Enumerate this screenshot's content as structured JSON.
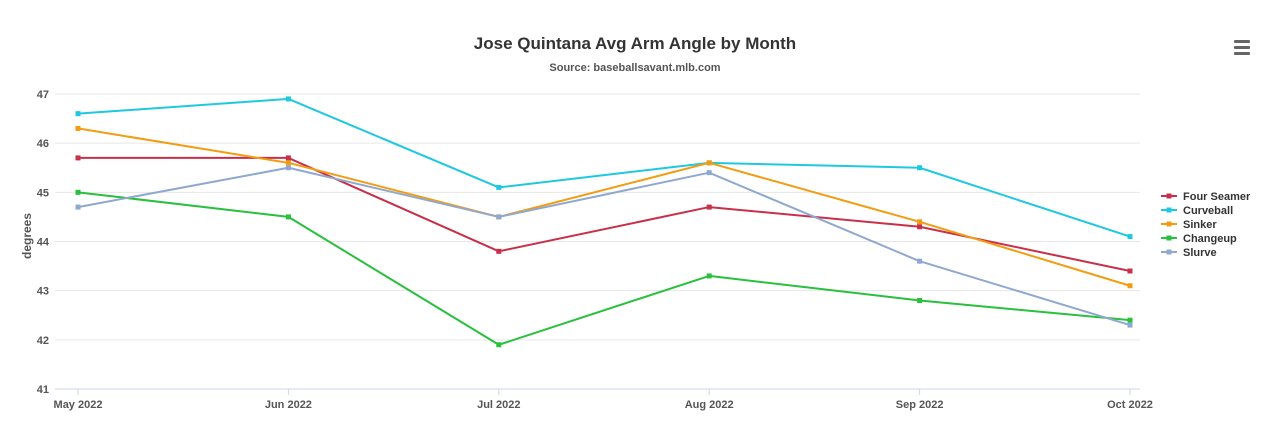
{
  "chart_data": {
    "type": "line",
    "title": "Jose Quintana Avg Arm Angle by Month",
    "subtitle": "Source: baseballsavant.mlb.com",
    "xlabel": "",
    "ylabel": "degrees",
    "categories": [
      "May 2022",
      "Jun 2022",
      "Jul 2022",
      "Aug 2022",
      "Sep 2022",
      "Oct 2022"
    ],
    "ylim": [
      41,
      47
    ],
    "yticks": [
      41,
      42,
      43,
      44,
      45,
      46,
      47
    ],
    "grid": true,
    "legend_position": "right",
    "series": [
      {
        "name": "Four Seamer",
        "color": "#c8304a",
        "values": [
          45.7,
          45.7,
          43.8,
          44.7,
          44.3,
          43.4
        ]
      },
      {
        "name": "Curveball",
        "color": "#1ec8e0",
        "values": [
          46.6,
          46.9,
          45.1,
          45.6,
          45.5,
          44.1
        ]
      },
      {
        "name": "Sinker",
        "color": "#f39c12",
        "values": [
          46.3,
          45.6,
          44.5,
          45.6,
          44.4,
          43.1
        ]
      },
      {
        "name": "Changeup",
        "color": "#28c03c",
        "values": [
          45.0,
          44.5,
          41.9,
          43.3,
          42.8,
          42.4
        ]
      },
      {
        "name": "Slurve",
        "color": "#8fa8d0",
        "values": [
          44.7,
          45.5,
          44.5,
          45.4,
          43.6,
          42.3
        ]
      }
    ]
  },
  "menu": {
    "icon": "hamburger-menu-icon"
  }
}
